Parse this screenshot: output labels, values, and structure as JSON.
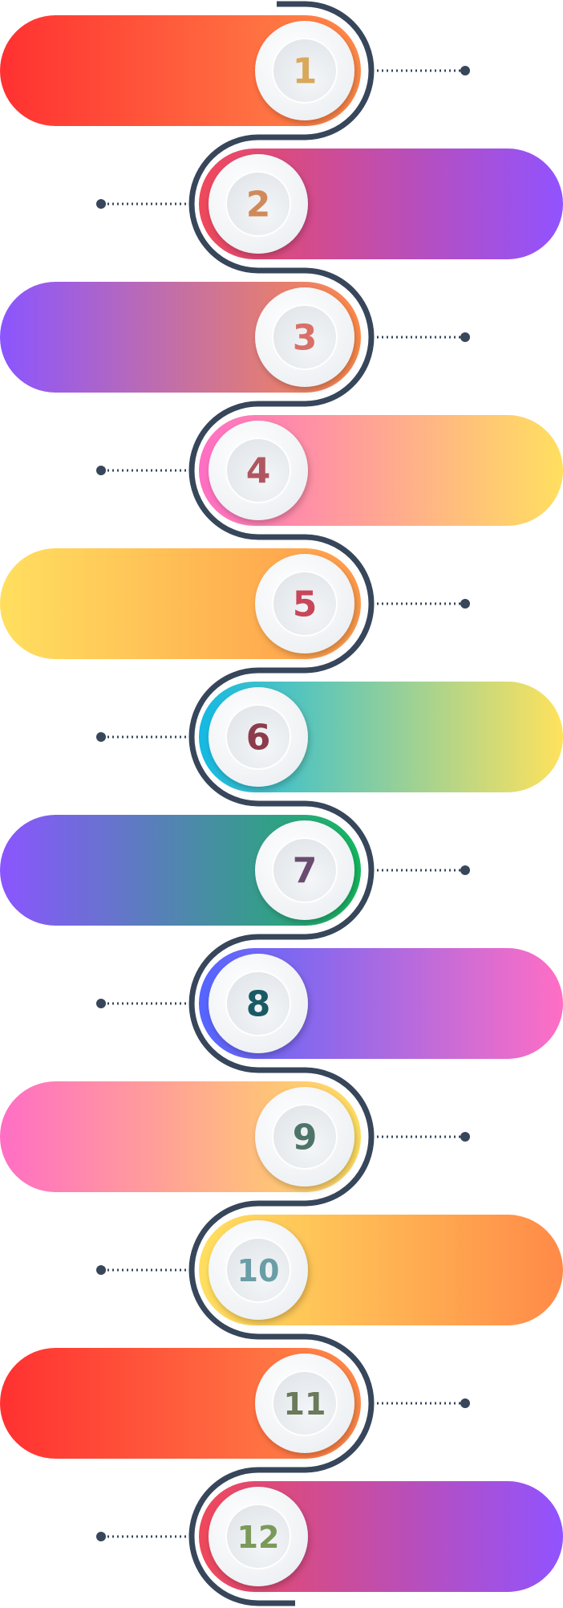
{
  "steps": [
    {
      "number": "1",
      "side": "left",
      "gradient": [
        "#ff3131",
        "#ff8a48"
      ],
      "number_color": "#d8a85c"
    },
    {
      "number": "2",
      "side": "right",
      "gradient": [
        "#f0485a",
        "#9153ff"
      ],
      "number_color": "#d08a5a"
    },
    {
      "number": "3",
      "side": "left",
      "gradient": [
        "#8b55ff",
        "#ff8a48"
      ],
      "number_color": "#d87068"
    },
    {
      "number": "4",
      "side": "right",
      "gradient": [
        "#ff6ec4",
        "#ffdf5f"
      ],
      "number_color": "#b05660"
    },
    {
      "number": "5",
      "side": "left",
      "gradient": [
        "#ffdf5f",
        "#ff9a4a"
      ],
      "number_color": "#c8465a"
    },
    {
      "number": "6",
      "side": "right",
      "gradient": [
        "#14b9e3",
        "#ffe25c"
      ],
      "number_color": "#8c3c4c"
    },
    {
      "number": "7",
      "side": "left",
      "gradient": [
        "#8b55ff",
        "#14b85f"
      ],
      "number_color": "#6a4c70"
    },
    {
      "number": "8",
      "side": "right",
      "gradient": [
        "#5465ff",
        "#ff6ec4"
      ],
      "number_color": "#1a5a66"
    },
    {
      "number": "9",
      "side": "left",
      "gradient": [
        "#ff6ec4",
        "#ffdf5f"
      ],
      "number_color": "#4e7468"
    },
    {
      "number": "10",
      "side": "right",
      "gradient": [
        "#ffdf5f",
        "#ff8a48"
      ],
      "number_color": "#6a9ea6"
    },
    {
      "number": "11",
      "side": "left",
      "gradient": [
        "#ff3131",
        "#ff8a48"
      ],
      "number_color": "#6a7a5a"
    },
    {
      "number": "12",
      "side": "right",
      "gradient": [
        "#f0485a",
        "#9153ff"
      ],
      "number_color": "#7a9a5a"
    }
  ],
  "colors": {
    "connector": "#37465a",
    "circle": "#edf0f3"
  }
}
